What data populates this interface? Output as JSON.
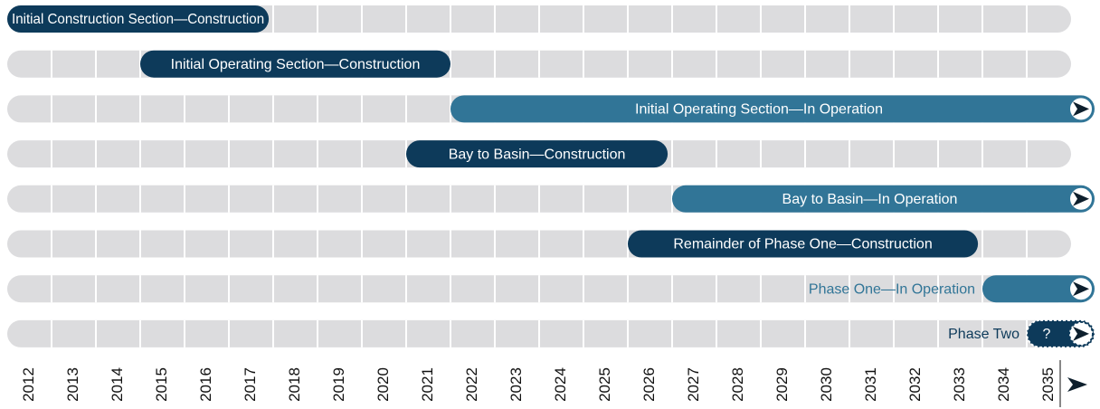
{
  "timeline": {
    "years": [
      2012,
      2013,
      2014,
      2015,
      2016,
      2017,
      2018,
      2019,
      2020,
      2021,
      2022,
      2023,
      2024,
      2025,
      2026,
      2027,
      2028,
      2029,
      2030,
      2031,
      2032,
      2033,
      2034,
      2035
    ],
    "tasks": [
      {
        "label": "Initial Construction Section—Construction",
        "start": 2012,
        "end": 2017.9,
        "color": "#0d3a5a"
      },
      {
        "label": "Initial Operating Section—Construction",
        "start": 2015,
        "end": 2022,
        "color": "#0d3a5a"
      },
      {
        "label": "Initial Operating Section—In Operation",
        "start": 2022,
        "end": null,
        "color": "#317597"
      },
      {
        "label": "Bay to Basin—Construction",
        "start": 2021,
        "end": 2026.9,
        "color": "#0d3a5a"
      },
      {
        "label": "Bay to Basin—In Operation",
        "start": 2027,
        "end": null,
        "color": "#317597"
      },
      {
        "label": "Remainder of Phase One—Construction",
        "start": 2026,
        "end": 2033.9,
        "color": "#0d3a5a"
      },
      {
        "label": "Phase One—In Operation",
        "start": 2034,
        "end": null,
        "color": "#317597",
        "label_position": "outside",
        "label_color": "#317597"
      },
      {
        "label": "Phase Two",
        "start": 2035,
        "end": null,
        "color": "#0d3a5a",
        "label_position": "outside",
        "label_color": "#0d3a5a",
        "marker": "?",
        "style": "dashed"
      }
    ]
  }
}
